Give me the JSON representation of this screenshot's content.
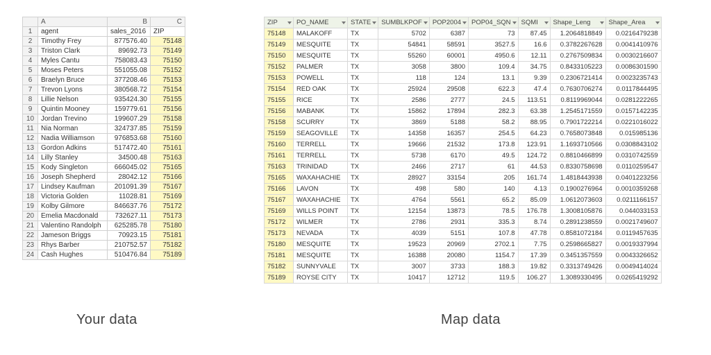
{
  "left": {
    "caption": "Your data",
    "col_letters": [
      "A",
      "B",
      "C"
    ],
    "headers": [
      "agent",
      "sales_2016",
      "ZIP"
    ],
    "rows": [
      [
        "Timothy Frey",
        "877576.40",
        "75148"
      ],
      [
        "Triston Clark",
        "89692.73",
        "75149"
      ],
      [
        "Myles Cantu",
        "758083.43",
        "75150"
      ],
      [
        "Moses Peters",
        "551055.08",
        "75152"
      ],
      [
        "Braelyn Bruce",
        "377208.46",
        "75153"
      ],
      [
        "Trevon Lyons",
        "380568.72",
        "75154"
      ],
      [
        "Lillie Nelson",
        "935424.30",
        "75155"
      ],
      [
        "Quintin Mooney",
        "159779.61",
        "75156"
      ],
      [
        "Jordan Trevino",
        "199607.29",
        "75158"
      ],
      [
        "Nia Norman",
        "324737.85",
        "75159"
      ],
      [
        "Nadia Williamson",
        "976853.68",
        "75160"
      ],
      [
        "Gordon Adkins",
        "517472.40",
        "75161"
      ],
      [
        "Lilly Stanley",
        "34500.48",
        "75163"
      ],
      [
        "Kody Singleton",
        "666045.02",
        "75165"
      ],
      [
        "Joseph Shepherd",
        "28042.12",
        "75166"
      ],
      [
        "Lindsey Kaufman",
        "201091.39",
        "75167"
      ],
      [
        "Victoria Golden",
        "11028.81",
        "75169"
      ],
      [
        "Kolby Gilmore",
        "846637.76",
        "75172"
      ],
      [
        "Emelia Macdonald",
        "732627.11",
        "75173"
      ],
      [
        "Valentino Randolph",
        "625285.78",
        "75180"
      ],
      [
        "Jameson Briggs",
        "70923.15",
        "75181"
      ],
      [
        "Rhys Barber",
        "210752.57",
        "75182"
      ],
      [
        "Cash Hughes",
        "510476.84",
        "75189"
      ]
    ]
  },
  "right": {
    "caption": "Map data",
    "headers": [
      "ZIP",
      "PO_NAME",
      "STATE",
      "SUMBLKPOF",
      "POP2004",
      "POP04_SQN",
      "SQMI",
      "Shape_Leng",
      "Shape_Area"
    ],
    "rows": [
      [
        "75148",
        "MALAKOFF",
        "TX",
        "5702",
        "6387",
        "73",
        "87.45",
        "1.2064818849",
        "0.0216479238"
      ],
      [
        "75149",
        "MESQUITE",
        "TX",
        "54841",
        "58591",
        "3527.5",
        "16.6",
        "0.3782267628",
        "0.0041410976"
      ],
      [
        "75150",
        "MESQUITE",
        "TX",
        "55260",
        "60001",
        "4950.6",
        "12.11",
        "0.2767509834",
        "0.0030216607"
      ],
      [
        "75152",
        "PALMER",
        "TX",
        "3058",
        "3800",
        "109.4",
        "34.75",
        "0.8433105223",
        "0.0086301590"
      ],
      [
        "75153",
        "POWELL",
        "TX",
        "118",
        "124",
        "13.1",
        "9.39",
        "0.2306721414",
        "0.0023235743"
      ],
      [
        "75154",
        "RED OAK",
        "TX",
        "25924",
        "29508",
        "622.3",
        "47.4",
        "0.7630706274",
        "0.0117844495"
      ],
      [
        "75155",
        "RICE",
        "TX",
        "2586",
        "2777",
        "24.5",
        "113.51",
        "0.8119969044",
        "0.0281222265"
      ],
      [
        "75156",
        "MABANK",
        "TX",
        "15862",
        "17894",
        "282.3",
        "63.38",
        "1.2545171559",
        "0.0157142235"
      ],
      [
        "75158",
        "SCURRY",
        "TX",
        "3869",
        "5188",
        "58.2",
        "88.95",
        "0.7901722214",
        "0.0221016022"
      ],
      [
        "75159",
        "SEAGOVILLE",
        "TX",
        "14358",
        "16357",
        "254.5",
        "64.23",
        "0.7658073848",
        "0.015985136"
      ],
      [
        "75160",
        "TERRELL",
        "TX",
        "19666",
        "21532",
        "173.8",
        "123.91",
        "1.1693710566",
        "0.0308843102"
      ],
      [
        "75161",
        "TERRELL",
        "TX",
        "5738",
        "6170",
        "49.5",
        "124.72",
        "0.8810466899",
        "0.0310742559"
      ],
      [
        "75163",
        "TRINIDAD",
        "TX",
        "2466",
        "2717",
        "61",
        "44.53",
        "0.8330758698",
        "0.0110259547"
      ],
      [
        "75165",
        "WAXAHACHIE",
        "TX",
        "28927",
        "33154",
        "205",
        "161.74",
        "1.4818443938",
        "0.0401223256"
      ],
      [
        "75166",
        "LAVON",
        "TX",
        "498",
        "580",
        "140",
        "4.13",
        "0.1900276964",
        "0.0010359268"
      ],
      [
        "75167",
        "WAXAHACHIE",
        "TX",
        "4764",
        "5561",
        "65.2",
        "85.09",
        "1.0612073603",
        "0.0211166157"
      ],
      [
        "75169",
        "WILLS POINT",
        "TX",
        "12154",
        "13873",
        "78.5",
        "176.78",
        "1.3008105876",
        "0.044033153"
      ],
      [
        "75172",
        "WILMER",
        "TX",
        "2786",
        "2931",
        "335.3",
        "8.74",
        "0.2891238559",
        "0.0021749607"
      ],
      [
        "75173",
        "NEVADA",
        "TX",
        "4039",
        "5151",
        "107.8",
        "47.78",
        "0.8581072184",
        "0.0119457635"
      ],
      [
        "75180",
        "MESQUITE",
        "TX",
        "19523",
        "20969",
        "2702.1",
        "7.75",
        "0.2598665827",
        "0.0019337994"
      ],
      [
        "75181",
        "MESQUITE",
        "TX",
        "16388",
        "20080",
        "1154.7",
        "17.39",
        "0.3451357559",
        "0.0043326652"
      ],
      [
        "75182",
        "SUNNYVALE",
        "TX",
        "3007",
        "3733",
        "188.3",
        "19.82",
        "0.3313749426",
        "0.0049414024"
      ],
      [
        "75189",
        "ROYSE CITY",
        "TX",
        "10417",
        "12712",
        "119.5",
        "106.27",
        "1.3089330495",
        "0.0265419292"
      ]
    ]
  }
}
